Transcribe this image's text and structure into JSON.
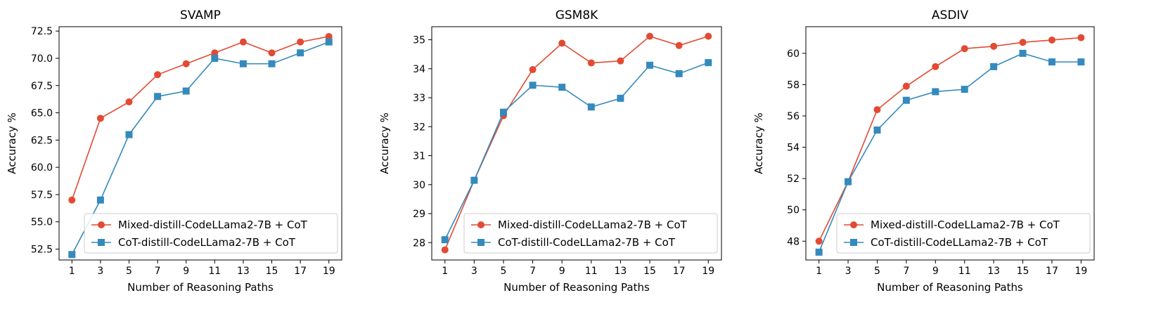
{
  "colors": {
    "mixed": "#e24a33",
    "cot": "#348abd",
    "axis": "#000000",
    "legend_border": "#cccccc",
    "background": "#ffffff"
  },
  "chart_data": [
    {
      "type": "line",
      "title": "SVAMP",
      "xlabel": "Number of Reasoning Paths",
      "ylabel": "Accuracy %",
      "x": [
        1,
        3,
        5,
        7,
        9,
        11,
        13,
        15,
        17,
        19
      ],
      "xticks": [
        "1",
        "3",
        "5",
        "7",
        "9",
        "11",
        "13",
        "15",
        "17",
        "19"
      ],
      "ylim": [
        51.5,
        72.9
      ],
      "yticks": [
        "52.5",
        "55.0",
        "57.5",
        "60.0",
        "62.5",
        "65.0",
        "67.5",
        "70.0",
        "72.5"
      ],
      "legend_position": "lower-right",
      "series": [
        {
          "name": "Mixed-distill-CodeLLama2-7B + CoT",
          "marker": "circle",
          "values": [
            57.0,
            64.5,
            66.0,
            68.5,
            69.5,
            70.5,
            71.5,
            70.5,
            71.5,
            72.0
          ]
        },
        {
          "name": "CoT-distill-CodeLLama2-7B + CoT",
          "marker": "square",
          "values": [
            52.0,
            57.0,
            63.0,
            66.5,
            67.0,
            70.0,
            69.5,
            69.5,
            70.5,
            71.5
          ]
        }
      ]
    },
    {
      "type": "line",
      "title": "GSM8K",
      "xlabel": "Number of Reasoning Paths",
      "ylabel": "Accuracy %",
      "x": [
        1,
        3,
        5,
        7,
        9,
        11,
        13,
        15,
        17,
        19
      ],
      "xticks": [
        "1",
        "3",
        "5",
        "7",
        "9",
        "11",
        "13",
        "15",
        "17",
        "19"
      ],
      "ylim": [
        27.4,
        35.45
      ],
      "yticks": [
        "28",
        "29",
        "30",
        "31",
        "32",
        "33",
        "34",
        "35"
      ],
      "legend_position": "lower-right",
      "series": [
        {
          "name": "Mixed-distill-CodeLLama2-7B + CoT",
          "marker": "circle",
          "values": [
            27.75,
            30.15,
            32.38,
            33.97,
            34.88,
            34.2,
            34.27,
            35.12,
            34.8,
            35.12
          ]
        },
        {
          "name": "CoT-distill-CodeLLama2-7B + CoT",
          "marker": "square",
          "values": [
            28.1,
            30.15,
            32.5,
            33.43,
            33.36,
            32.68,
            32.98,
            34.12,
            33.83,
            34.21
          ]
        }
      ]
    },
    {
      "type": "line",
      "title": "ASDIV",
      "xlabel": "Number of Reasoning Paths",
      "ylabel": "Accuracy %",
      "x": [
        1,
        3,
        5,
        7,
        9,
        11,
        13,
        15,
        17,
        19
      ],
      "xticks": [
        "1",
        "3",
        "5",
        "7",
        "9",
        "11",
        "13",
        "15",
        "17",
        "19"
      ],
      "ylim": [
        46.8,
        61.7
      ],
      "yticks": [
        "48",
        "50",
        "52",
        "54",
        "56",
        "58",
        "60"
      ],
      "legend_position": "lower-right",
      "series": [
        {
          "name": "Mixed-distill-CodeLLama2-7B + CoT",
          "marker": "circle",
          "values": [
            48.0,
            51.8,
            56.4,
            57.9,
            59.15,
            60.3,
            60.45,
            60.7,
            60.85,
            61.0
          ]
        },
        {
          "name": "CoT-distill-CodeLLama2-7B + CoT",
          "marker": "square",
          "values": [
            47.3,
            51.8,
            55.1,
            57.0,
            57.55,
            57.7,
            59.15,
            60.0,
            59.45,
            59.45
          ]
        }
      ]
    }
  ]
}
